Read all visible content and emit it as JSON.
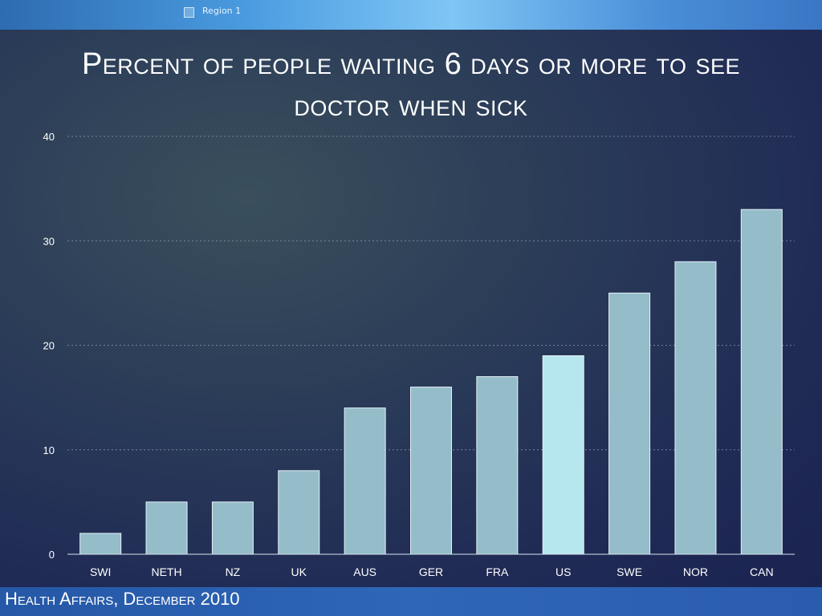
{
  "header": {
    "region_label": "Region 1"
  },
  "chart_data": {
    "type": "bar",
    "title": "Percent of people waiting 6 days or more to see doctor when sick",
    "categories": [
      "SWI",
      "NETH",
      "NZ",
      "UK",
      "AUS",
      "GER",
      "FRA",
      "US",
      "SWE",
      "NOR",
      "CAN"
    ],
    "values": [
      2,
      5,
      5,
      8,
      14,
      16,
      17,
      19,
      25,
      28,
      33
    ],
    "ylim": [
      0,
      40
    ],
    "yticks": [
      "0",
      "10",
      "20",
      "30",
      "40"
    ],
    "grid": true,
    "colors": {
      "bar": "#94bcc9",
      "highlight": "#b7e7ee",
      "highlight_category": "US"
    }
  },
  "footer": {
    "source": "Health Affairs, December 2010"
  }
}
